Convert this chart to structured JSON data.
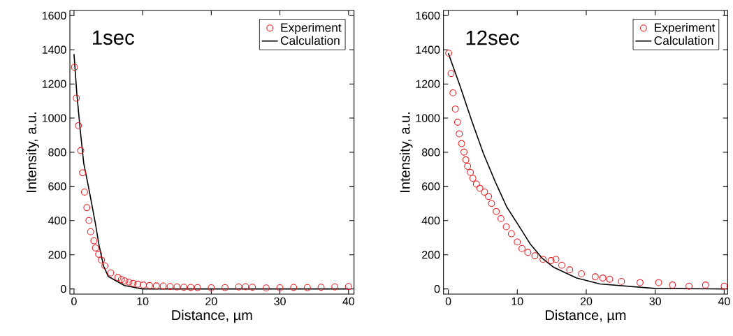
{
  "chart_data": [
    {
      "type": "scatter",
      "xlabel": "Distance, µm",
      "ylabel": "Intensity, a.u.",
      "annotations": [
        "1sec"
      ],
      "xlim": [
        -0.6,
        40.8
      ],
      "ylim": [
        -30,
        1630
      ],
      "xticks": [
        0,
        10,
        20,
        30,
        40
      ],
      "yticks": [
        0,
        200,
        400,
        600,
        800,
        1000,
        1200,
        1400,
        1600
      ],
      "grid": false,
      "legend": "top right",
      "series": [
        {
          "name": "Experiment",
          "marker": "circle",
          "color": "#e8191e",
          "x": [
            0.07,
            0.34,
            0.65,
            0.98,
            1.25,
            1.53,
            1.87,
            2.18,
            2.42,
            2.9,
            3.13,
            3.59,
            4.0,
            4.5,
            5.35,
            6.4,
            6.9,
            7.4,
            8.0,
            8.6,
            9.3,
            10.1,
            11,
            12,
            13,
            14,
            15,
            16,
            17,
            18,
            20,
            22,
            24,
            25,
            26,
            28,
            30,
            32,
            34,
            36,
            38,
            40
          ],
          "values": [
            1298,
            1117,
            956,
            810,
            680,
            567,
            476,
            401,
            335,
            282,
            240,
            203,
            169,
            135,
            94,
            67,
            55,
            47,
            40,
            33,
            28,
            23,
            20,
            18,
            17,
            14,
            12,
            10,
            9,
            8,
            7,
            8,
            12,
            13,
            10,
            6,
            7,
            9,
            8,
            10,
            12,
            14
          ]
        },
        {
          "name": "Calculation",
          "type": "line",
          "line_style": "solid",
          "color": "#000000",
          "x": [
            0,
            0.41,
            0.92,
            1.42,
            2.1,
            2.62,
            3.13,
            3.64,
            3.95,
            4.3,
            5.0,
            7.35,
            10,
            20,
            30,
            40
          ],
          "values": [
            1375,
            1144,
            926,
            735,
            600,
            490,
            380,
            258,
            200,
            135,
            73,
            20,
            0,
            0,
            0,
            0
          ]
        }
      ]
    },
    {
      "type": "scatter",
      "xlabel": "Distance, µm",
      "ylabel": "Intensity, a.u.",
      "annotations": [
        "12sec"
      ],
      "xlim": [
        -0.7,
        40.5
      ],
      "ylim": [
        -30,
        1630
      ],
      "xticks": [
        0,
        10,
        20,
        30,
        40
      ],
      "yticks": [
        0,
        200,
        400,
        600,
        800,
        1000,
        1200,
        1400,
        1600
      ],
      "grid": false,
      "legend": "top right",
      "series": [
        {
          "name": "Experiment",
          "marker": "circle",
          "color": "#e8191e",
          "x": [
            0.06,
            0.4,
            0.67,
            1.02,
            1.35,
            1.59,
            1.93,
            2.27,
            2.54,
            2.8,
            3.2,
            3.56,
            4.07,
            4.58,
            5.25,
            5.83,
            6.27,
            6.95,
            7.63,
            8.4,
            9.15,
            10.0,
            10.68,
            11.53,
            12.55,
            13.74,
            14.9,
            15.6,
            16.45,
            17.6,
            19.3,
            21.3,
            22.4,
            23.4,
            25.1,
            27.8,
            30.5,
            32.5,
            34.9,
            37.3,
            40
          ],
          "values": [
            1380,
            1261,
            1148,
            1053,
            976,
            908,
            851,
            801,
            756,
            718,
            682,
            648,
            614,
            589,
            567,
            541,
            500,
            453,
            412,
            364,
            323,
            275,
            237,
            214,
            194,
            173,
            166,
            173,
            139,
            112,
            89,
            71,
            64,
            57,
            44,
            37,
            37,
            23,
            16,
            23,
            16
          ]
        },
        {
          "name": "Calculation",
          "type": "line",
          "line_style": "solid",
          "color": "#000000",
          "x": [
            0,
            1.69,
            3.4,
            5.09,
            6.78,
            8.47,
            10.2,
            11.9,
            13.6,
            15.3,
            18.6,
            22,
            29.9,
            40
          ],
          "values": [
            1380,
            1189,
            984,
            793,
            630,
            480,
            371,
            262,
            180,
            126,
            64,
            29,
            3,
            0
          ]
        }
      ]
    }
  ]
}
